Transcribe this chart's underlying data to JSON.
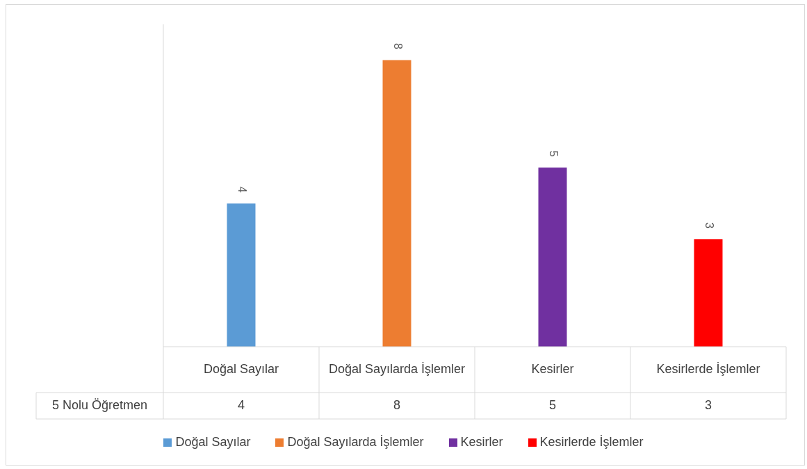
{
  "chart_data": {
    "type": "bar",
    "categories": [
      "Doğal Sayılar",
      "Doğal Sayılarda İşlemler",
      "Kesirler",
      "Kesirlerde İşlemler"
    ],
    "series": [
      {
        "name": "5 Nolu Öğretmen",
        "colors": [
          "#5b9bd5",
          "#ed7d31",
          "#7030a0",
          "#ff0000"
        ],
        "values": [
          4,
          8,
          5,
          3
        ],
        "value_labels": [
          "4",
          "8",
          "5",
          "3"
        ]
      }
    ],
    "data_labels": true,
    "legend": "bottom",
    "annotations": [
      "4",
      "8",
      "5",
      "3"
    ]
  }
}
